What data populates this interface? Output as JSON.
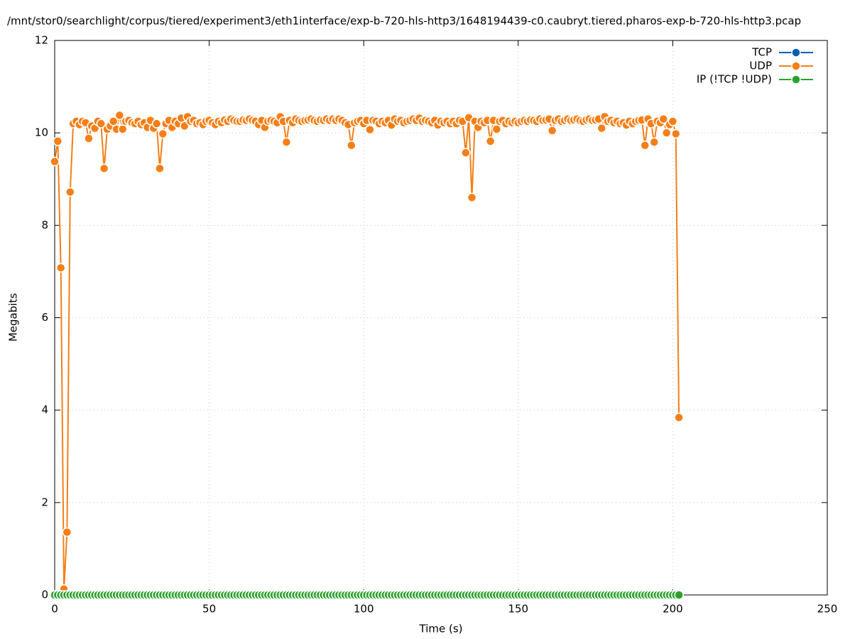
{
  "chart_data": {
    "type": "line",
    "title": "/mnt/stor0/searchlight/corpus/tiered/experiment3/eth1interface/exp-b-720-hls-http3/1648194439-c0.caubryt.tiered.pharos-exp-b-720-hls-http3.pcap",
    "x_label": "Time (s)",
    "y_label": "Megabits",
    "xlim": [
      0,
      250
    ],
    "xticks": [
      0,
      50,
      100,
      150,
      200,
      250
    ],
    "ylim": [
      0,
      12
    ],
    "yticks": [
      0,
      2,
      4,
      6,
      8,
      10,
      12
    ],
    "grid": true,
    "legend": "top-right",
    "x": [
      0,
      1,
      2,
      3,
      4,
      5,
      6,
      7,
      8,
      9,
      10,
      11,
      12,
      13,
      14,
      15,
      16,
      17,
      18,
      19,
      20,
      21,
      22,
      23,
      24,
      25,
      26,
      27,
      28,
      29,
      30,
      31,
      32,
      33,
      34,
      35,
      36,
      37,
      38,
      39,
      40,
      41,
      42,
      43,
      44,
      45,
      46,
      47,
      48,
      49,
      50,
      51,
      52,
      53,
      54,
      55,
      56,
      57,
      58,
      59,
      60,
      61,
      62,
      63,
      64,
      65,
      66,
      67,
      68,
      69,
      70,
      71,
      72,
      73,
      74,
      75,
      76,
      77,
      78,
      79,
      80,
      81,
      82,
      83,
      84,
      85,
      86,
      87,
      88,
      89,
      90,
      91,
      92,
      93,
      94,
      95,
      96,
      97,
      98,
      99,
      100,
      101,
      102,
      103,
      104,
      105,
      106,
      107,
      108,
      109,
      110,
      111,
      112,
      113,
      114,
      115,
      116,
      117,
      118,
      119,
      120,
      121,
      122,
      123,
      124,
      125,
      126,
      127,
      128,
      129,
      130,
      131,
      132,
      133,
      134,
      135,
      136,
      137,
      138,
      139,
      140,
      141,
      142,
      143,
      144,
      145,
      146,
      147,
      148,
      149,
      150,
      151,
      152,
      153,
      154,
      155,
      156,
      157,
      158,
      159,
      160,
      161,
      162,
      163,
      164,
      165,
      166,
      167,
      168,
      169,
      170,
      171,
      172,
      173,
      174,
      175,
      176,
      177,
      178,
      179,
      180,
      181,
      182,
      183,
      184,
      185,
      186,
      187,
      188,
      189,
      190,
      191,
      192,
      193,
      194,
      195,
      196,
      197,
      198,
      199,
      200,
      201,
      202
    ],
    "series": [
      {
        "name": "TCP",
        "color": "#0060ad",
        "values": [
          0,
          0,
          0,
          0,
          0,
          0,
          0,
          0,
          0,
          0,
          0,
          0,
          0,
          0,
          0,
          0,
          0,
          0,
          0,
          0,
          0,
          0,
          0,
          0,
          0,
          0,
          0,
          0,
          0,
          0,
          0,
          0,
          0,
          0,
          0,
          0,
          0,
          0,
          0,
          0,
          0,
          0,
          0,
          0,
          0,
          0,
          0,
          0,
          0,
          0,
          0,
          0,
          0,
          0,
          0,
          0,
          0,
          0,
          0,
          0,
          0,
          0,
          0,
          0,
          0,
          0,
          0,
          0,
          0,
          0,
          0,
          0,
          0,
          0,
          0,
          0,
          0,
          0,
          0,
          0,
          0,
          0,
          0,
          0,
          0,
          0,
          0,
          0,
          0,
          0,
          0,
          0,
          0,
          0,
          0,
          0,
          0,
          0,
          0,
          0,
          0,
          0,
          0,
          0,
          0,
          0,
          0,
          0,
          0,
          0,
          0,
          0,
          0,
          0,
          0,
          0,
          0,
          0,
          0,
          0,
          0,
          0,
          0,
          0,
          0,
          0,
          0,
          0,
          0,
          0,
          0,
          0,
          0,
          0,
          0,
          0,
          0,
          0,
          0,
          0,
          0,
          0,
          0,
          0,
          0,
          0,
          0,
          0,
          0,
          0,
          0,
          0,
          0,
          0,
          0,
          0,
          0,
          0,
          0,
          0,
          0,
          0,
          0,
          0,
          0,
          0,
          0,
          0,
          0,
          0,
          0,
          0,
          0,
          0,
          0,
          0,
          0,
          0,
          0,
          0,
          0,
          0,
          0,
          0,
          0,
          0,
          0,
          0,
          0,
          0,
          0,
          0,
          0,
          0,
          0,
          0,
          0,
          0,
          0,
          0,
          0,
          0,
          0
        ]
      },
      {
        "name": "UDP",
        "color": "#f57f17",
        "values": [
          9.38,
          9.82,
          7.08,
          0.13,
          1.36,
          8.72,
          10.2,
          10.25,
          10.18,
          10.25,
          10.22,
          9.88,
          10.15,
          10.1,
          10.25,
          10.2,
          9.23,
          10.08,
          10.15,
          10.25,
          10.08,
          10.38,
          10.08,
          10.25,
          10.27,
          10.22,
          10.2,
          10.25,
          10.18,
          10.22,
          10.12,
          10.27,
          10.1,
          10.2,
          9.23,
          9.98,
          10.2,
          10.27,
          10.12,
          10.25,
          10.2,
          10.32,
          10.15,
          10.35,
          10.25,
          10.27,
          10.2,
          10.22,
          10.18,
          10.25,
          10.27,
          10.22,
          10.18,
          10.25,
          10.22,
          10.28,
          10.25,
          10.3,
          10.27,
          10.25,
          10.25,
          10.28,
          10.27,
          10.3,
          10.27,
          10.25,
          10.18,
          10.27,
          10.12,
          10.25,
          10.27,
          10.25,
          10.22,
          10.35,
          10.25,
          9.8,
          10.27,
          10.22,
          10.3,
          10.27,
          10.25,
          10.27,
          10.28,
          10.3,
          10.27,
          10.25,
          10.28,
          10.27,
          10.3,
          10.27,
          10.3,
          10.27,
          10.3,
          10.27,
          10.22,
          10.18,
          9.73,
          10.22,
          10.25,
          10.27,
          10.2,
          10.27,
          10.07,
          10.27,
          10.25,
          10.2,
          10.25,
          10.22,
          10.27,
          10.17,
          10.3,
          10.25,
          10.27,
          10.22,
          10.25,
          10.27,
          10.3,
          10.27,
          10.32,
          10.25,
          10.27,
          10.25,
          10.22,
          10.27,
          10.17,
          10.25,
          10.22,
          10.25,
          10.2,
          10.25,
          10.2,
          10.27,
          10.25,
          9.57,
          10.33,
          8.6,
          10.25,
          10.12,
          10.25,
          10.22,
          10.27,
          9.82,
          10.27,
          10.08,
          10.25,
          10.27,
          10.2,
          10.25,
          10.22,
          10.25,
          10.22,
          10.25,
          10.27,
          10.25,
          10.28,
          10.27,
          10.25,
          10.3,
          10.27,
          10.28,
          10.3,
          10.05,
          10.27,
          10.3,
          10.25,
          10.27,
          10.3,
          10.27,
          10.28,
          10.3,
          10.27,
          10.25,
          10.28,
          10.3,
          10.27,
          10.28,
          10.3,
          10.1,
          10.35,
          10.25,
          10.27,
          10.22,
          10.25,
          10.2,
          10.22,
          10.17,
          10.25,
          10.2,
          10.25,
          10.27,
          10.28,
          9.73,
          10.3,
          10.2,
          9.8,
          10.25,
          10.22,
          10.3,
          10.0,
          10.18,
          10.25,
          9.98,
          3.84
        ]
      },
      {
        "name": "IP (!TCP  !UDP)",
        "color": "#2ca02c",
        "values": [
          0,
          0,
          0,
          0,
          0,
          0,
          0,
          0,
          0,
          0,
          0,
          0,
          0,
          0,
          0,
          0,
          0,
          0,
          0,
          0,
          0,
          0,
          0,
          0,
          0,
          0,
          0,
          0,
          0,
          0,
          0,
          0,
          0,
          0,
          0,
          0,
          0,
          0,
          0,
          0,
          0,
          0,
          0,
          0,
          0,
          0,
          0,
          0,
          0,
          0,
          0,
          0,
          0,
          0,
          0,
          0,
          0,
          0,
          0,
          0,
          0,
          0,
          0,
          0,
          0,
          0,
          0,
          0,
          0,
          0,
          0,
          0,
          0,
          0,
          0,
          0,
          0,
          0,
          0,
          0,
          0,
          0,
          0,
          0,
          0,
          0,
          0,
          0,
          0,
          0,
          0,
          0,
          0,
          0,
          0,
          0,
          0,
          0,
          0,
          0,
          0,
          0,
          0,
          0,
          0,
          0,
          0,
          0,
          0,
          0,
          0,
          0,
          0,
          0,
          0,
          0,
          0,
          0,
          0,
          0,
          0,
          0,
          0,
          0,
          0,
          0,
          0,
          0,
          0,
          0,
          0,
          0,
          0,
          0,
          0,
          0,
          0,
          0,
          0,
          0,
          0,
          0,
          0,
          0,
          0,
          0,
          0,
          0,
          0,
          0,
          0,
          0,
          0,
          0,
          0,
          0,
          0,
          0,
          0,
          0,
          0,
          0,
          0,
          0,
          0,
          0,
          0,
          0,
          0,
          0,
          0,
          0,
          0,
          0,
          0,
          0,
          0,
          0,
          0,
          0,
          0,
          0,
          0,
          0,
          0,
          0,
          0,
          0,
          0,
          0,
          0,
          0,
          0,
          0,
          0,
          0,
          0,
          0,
          0,
          0,
          0,
          0,
          0
        ]
      }
    ]
  }
}
